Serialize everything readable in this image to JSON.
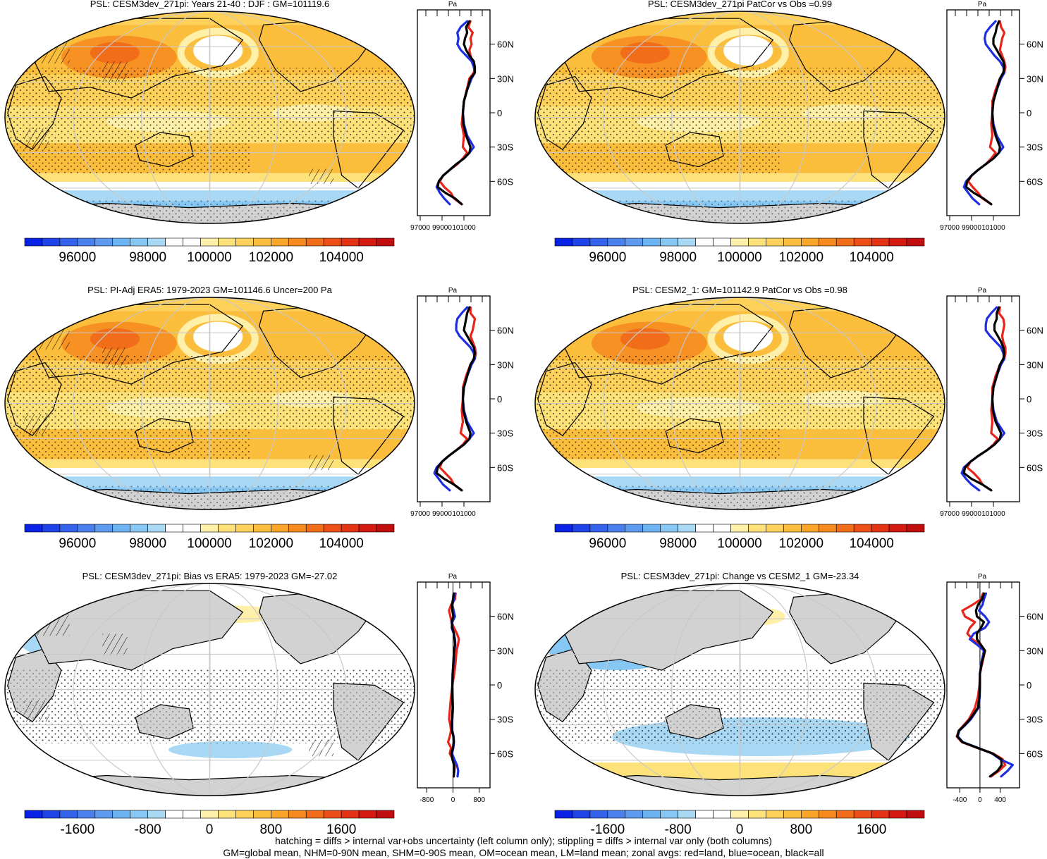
{
  "figure": {
    "variable": "PSL",
    "season": "DJF",
    "footnote_line1": "hatching = diffs > internal var+obs uncertainty (left column only); stippling = diffs > internal var only (both columns)",
    "footnote_line2": "GM=global mean, NHM=0-90N mean, SHM=0-90S mean, OM=ocean mean, LM=land mean; zonal avgs: red=land, blue=ocean, black=all"
  },
  "colors": {
    "land_zonal": "#e8251b",
    "ocean_zonal": "#1f2fe0",
    "all_zonal": "#000000",
    "land_mask": "#d2d2d2",
    "graticule": "#c8c8c8"
  },
  "chart_data": [
    {
      "type": "heatmap",
      "title": "PSL: CESM3dev_271pi: Years 21-40 : DJF : GM=101119.6",
      "colorbar": {
        "ticks": [
          "96000",
          "98000",
          "100000",
          "102000",
          "104000"
        ]
      },
      "zonal": {
        "unit": "Pa",
        "lat_ticks": [
          "60N",
          "30N",
          "0",
          "30S",
          "60S"
        ],
        "x_ticks": [
          "97000",
          "99000",
          "101000"
        ],
        "x_range": [
          97000,
          103000
        ],
        "lat": [
          80,
          75,
          70,
          65,
          60,
          55,
          50,
          45,
          40,
          35,
          30,
          20,
          10,
          0,
          -10,
          -20,
          -30,
          -35,
          -40,
          -45,
          -50,
          -55,
          -60,
          -65,
          -70,
          -75,
          -80
        ],
        "all": [
          101500,
          101200,
          101300,
          101100,
          101000,
          101200,
          101500,
          101900,
          102000,
          102000,
          101600,
          101300,
          101000,
          100900,
          100950,
          101200,
          101600,
          101500,
          101000,
          100300,
          99700,
          99100,
          98700,
          98600,
          99300,
          100200,
          100800
        ],
        "land": [
          101600,
          101400,
          101800,
          101600,
          101700,
          101500,
          101600,
          101800,
          102000,
          101900,
          101500,
          101250,
          101000,
          100900,
          100800,
          101000,
          100900,
          101300,
          100900,
          100400,
          99700,
          99100,
          98800,
          99200,
          99800,
          100100,
          100800
        ],
        "ocean": [
          101300,
          100700,
          100400,
          100500,
          100400,
          100700,
          101200,
          101700,
          101900,
          102000,
          101700,
          101300,
          101000,
          100900,
          101000,
          101300,
          101900,
          101500,
          101000,
          100300,
          99700,
          99100,
          98700,
          98500,
          98800,
          99200,
          99700
        ]
      }
    },
    {
      "type": "heatmap",
      "title": "PSL: CESM3dev_271pi PatCor vs Obs =0.99",
      "colorbar": {
        "ticks": [
          "96000",
          "98000",
          "100000",
          "102000",
          "104000"
        ]
      },
      "zonal": {
        "unit": "Pa",
        "lat_ticks": [
          "60N",
          "30N",
          "0",
          "30S",
          "60S"
        ],
        "x_ticks": [
          "97000",
          "99000",
          "101000"
        ],
        "x_range": [
          97000,
          103000
        ],
        "lat": [
          80,
          75,
          70,
          65,
          60,
          55,
          50,
          45,
          40,
          35,
          30,
          20,
          10,
          0,
          -10,
          -20,
          -30,
          -35,
          -40,
          -45,
          -50,
          -55,
          -60,
          -65,
          -70,
          -75,
          -80
        ],
        "all": [
          101500,
          101300,
          101200,
          101000,
          101000,
          101300,
          101600,
          101900,
          102000,
          101900,
          101600,
          101300,
          101000,
          100900,
          100950,
          101200,
          101600,
          101500,
          101000,
          100300,
          99600,
          99000,
          98600,
          98500,
          99200,
          100100,
          100800
        ],
        "land": [
          101600,
          101700,
          102000,
          101800,
          101700,
          101600,
          101800,
          102000,
          102100,
          102000,
          101600,
          101200,
          100900,
          100900,
          100800,
          100900,
          100700,
          101200,
          100800,
          100300,
          99600,
          99000,
          98700,
          99100,
          99600,
          100000,
          100800
        ],
        "ocean": [
          101200,
          100700,
          100300,
          100200,
          100300,
          100700,
          101100,
          101600,
          101900,
          102000,
          101700,
          101300,
          101000,
          100900,
          101000,
          101300,
          101900,
          101500,
          101000,
          100300,
          99600,
          99000,
          98500,
          98300,
          98700,
          99100,
          99700
        ]
      }
    },
    {
      "type": "heatmap",
      "title": "PSL: PI-Adj ERA5: 1979-2023 GM=101146.6 Uncer=200 Pa",
      "colorbar": {
        "ticks": [
          "96000",
          "98000",
          "100000",
          "102000",
          "104000"
        ]
      },
      "zonal": {
        "unit": "Pa",
        "lat_ticks": [
          "60N",
          "30N",
          "0",
          "30S",
          "60S"
        ],
        "x_ticks": [
          "97000",
          "99000",
          "101000"
        ],
        "x_range": [
          97000,
          103000
        ],
        "lat": [
          80,
          75,
          70,
          65,
          60,
          55,
          50,
          45,
          40,
          35,
          30,
          20,
          10,
          0,
          -10,
          -20,
          -30,
          -35,
          -40,
          -45,
          -50,
          -55,
          -60,
          -65,
          -70,
          -75,
          -80
        ],
        "all": [
          101500,
          101300,
          101200,
          101100,
          101000,
          101300,
          101600,
          101900,
          102000,
          101900,
          101600,
          101300,
          101000,
          100900,
          100950,
          101200,
          101600,
          101500,
          101000,
          100300,
          99600,
          99000,
          98600,
          98500,
          99200,
          100100,
          100800
        ],
        "land": [
          101600,
          101600,
          102000,
          101900,
          101800,
          101600,
          101800,
          102000,
          102100,
          102000,
          101600,
          101200,
          100900,
          100900,
          100800,
          100900,
          100700,
          101300,
          100900,
          100300,
          99600,
          99000,
          98800,
          99300,
          99800,
          100100,
          100800
        ],
        "ocean": [
          101300,
          100800,
          100400,
          100300,
          100300,
          100600,
          101100,
          101600,
          101900,
          102000,
          101700,
          101300,
          101000,
          100900,
          101000,
          101300,
          101900,
          101500,
          101000,
          100300,
          99600,
          99000,
          98500,
          98300,
          98700,
          99100,
          99700
        ]
      }
    },
    {
      "type": "heatmap",
      "title": "PSL: CESM2_1: GM=101142.9 PatCor vs Obs =0.98",
      "colorbar": {
        "ticks": [
          "96000",
          "98000",
          "100000",
          "102000",
          "104000"
        ]
      },
      "zonal": {
        "unit": "Pa",
        "lat_ticks": [
          "60N",
          "30N",
          "0",
          "30S",
          "60S"
        ],
        "x_ticks": [
          "97000",
          "99000",
          "101000"
        ],
        "x_range": [
          97000,
          103000
        ],
        "lat": [
          80,
          75,
          70,
          65,
          60,
          55,
          50,
          45,
          40,
          35,
          30,
          20,
          10,
          0,
          -10,
          -20,
          -30,
          -35,
          -40,
          -45,
          -50,
          -55,
          -60,
          -65,
          -70,
          -75,
          -80
        ],
        "all": [
          101500,
          101300,
          101300,
          101100,
          101100,
          101400,
          101700,
          101900,
          102000,
          101900,
          101600,
          101300,
          101000,
          100900,
          100950,
          101200,
          101700,
          101600,
          101100,
          100400,
          99600,
          98900,
          98400,
          98300,
          99000,
          100000,
          100800
        ],
        "land": [
          101600,
          101500,
          101900,
          102000,
          101900,
          101800,
          101900,
          102100,
          102100,
          102000,
          101600,
          101200,
          100900,
          100900,
          100800,
          100900,
          100800,
          101400,
          101000,
          100400,
          99600,
          98900,
          98600,
          99200,
          99700,
          100000,
          100800
        ],
        "ocean": [
          101300,
          100800,
          100400,
          100300,
          100300,
          100700,
          101200,
          101700,
          101900,
          102000,
          101700,
          101300,
          101000,
          100900,
          101000,
          101300,
          102000,
          101600,
          101100,
          100400,
          99600,
          98900,
          98300,
          98100,
          98500,
          99000,
          99700
        ]
      }
    },
    {
      "type": "heatmap",
      "title": "PSL: CESM3dev_271pi: Bias vs ERA5: 1979-2023 GM=-27.02",
      "colorbar": {
        "ticks": [
          "-1600",
          "-800",
          "0",
          "800",
          "1600"
        ]
      },
      "zonal": {
        "unit": "Pa",
        "lat_ticks": [
          "60N",
          "30N",
          "0",
          "30S",
          "60S"
        ],
        "x_ticks": [
          "-800",
          "0",
          "800"
        ],
        "x_range": [
          -1000,
          1000
        ],
        "lat": [
          80,
          75,
          70,
          65,
          60,
          55,
          50,
          45,
          40,
          35,
          30,
          20,
          10,
          0,
          -10,
          -20,
          -30,
          -35,
          -40,
          -45,
          -50,
          -55,
          -60,
          -65,
          -70,
          -75,
          -80
        ],
        "all": [
          20,
          0,
          -30,
          -20,
          10,
          -40,
          -20,
          30,
          50,
          60,
          30,
          10,
          -10,
          -20,
          -20,
          -10,
          -30,
          -40,
          -30,
          10,
          20,
          0,
          -50,
          -20,
          30,
          40,
          20
        ],
        "land": [
          80,
          60,
          -60,
          -120,
          -80,
          -40,
          30,
          120,
          180,
          150,
          110,
          80,
          40,
          -20,
          -60,
          -90,
          -120,
          -80,
          -60,
          -100,
          -150,
          -60,
          -100,
          0,
          60,
          40,
          20
        ],
        "ocean": [
          60,
          30,
          -20,
          20,
          60,
          -20,
          -40,
          20,
          60,
          70,
          40,
          20,
          -10,
          -20,
          -10,
          0,
          -20,
          -30,
          -20,
          20,
          30,
          10,
          -30,
          40,
          120,
          160,
          140
        ]
      }
    },
    {
      "type": "heatmap",
      "title": "PSL: CESM3dev_271pi: Change vs CESM2_1 GM=-23.34",
      "colorbar": {
        "ticks": [
          "-1600",
          "-800",
          "0",
          "800",
          "1600"
        ]
      },
      "zonal": {
        "unit": "Pa",
        "lat_ticks": [
          "60N",
          "30N",
          "0",
          "30S",
          "60S"
        ],
        "x_ticks": [
          "-400",
          "0",
          "400"
        ],
        "x_range": [
          -600,
          700
        ],
        "lat": [
          80,
          75,
          70,
          65,
          60,
          55,
          50,
          45,
          40,
          35,
          30,
          20,
          10,
          0,
          -10,
          -20,
          -30,
          -35,
          -40,
          -45,
          -50,
          -55,
          -60,
          -65,
          -70,
          -75,
          -80
        ],
        "all": [
          80,
          40,
          -40,
          -80,
          -60,
          80,
          20,
          -60,
          -60,
          20,
          100,
          40,
          0,
          0,
          -10,
          -40,
          -200,
          -300,
          -420,
          -450,
          -350,
          -50,
          250,
          420,
          430,
          350,
          200
        ],
        "land": [
          60,
          20,
          -150,
          -350,
          -300,
          -100,
          -200,
          -250,
          -150,
          0,
          100,
          50,
          0,
          -10,
          -40,
          -100,
          -220,
          -320,
          -420,
          -460,
          -360,
          -60,
          260,
          450,
          500,
          380,
          220
        ],
        "ocean": [
          120,
          80,
          50,
          -20,
          100,
          180,
          100,
          -120,
          -200,
          -50,
          80,
          30,
          0,
          0,
          -5,
          -30,
          -180,
          -290,
          -410,
          -440,
          -340,
          -40,
          240,
          400,
          650,
          550,
          420
        ]
      }
    }
  ]
}
